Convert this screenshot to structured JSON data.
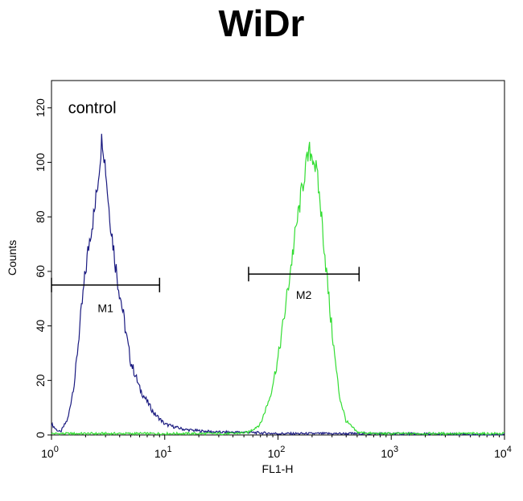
{
  "chart_data": {
    "type": "line",
    "title": "WiDr",
    "xlabel": "FL1-H",
    "ylabel": "Counts",
    "x_scale": "log",
    "xlim": [
      1,
      10000
    ],
    "ylim": [
      0,
      130
    ],
    "grid": false,
    "x_ticks": [
      {
        "value": 1,
        "base": "10",
        "exp": "0"
      },
      {
        "value": 10,
        "base": "10",
        "exp": "1"
      },
      {
        "value": 100,
        "base": "10",
        "exp": "2"
      },
      {
        "value": 1000,
        "base": "10",
        "exp": "3"
      },
      {
        "value": 10000,
        "base": "10",
        "exp": "4"
      }
    ],
    "y_ticks": [
      0,
      20,
      40,
      60,
      80,
      100,
      120
    ],
    "series": [
      {
        "name": "control",
        "color": "#1a1a80",
        "x": [
          1,
          1.1,
          1.2,
          1.4,
          1.6,
          1.8,
          2.0,
          2.2,
          2.4,
          2.6,
          2.8,
          3.0,
          3.2,
          3.5,
          3.8,
          4.2,
          4.6,
          5.0,
          5.5,
          6.0,
          6.6,
          7.3,
          8.0,
          9.0,
          10,
          12,
          15,
          20,
          30,
          50,
          100,
          300,
          1000,
          10000
        ],
        "y": [
          4,
          2,
          1,
          6,
          20,
          42,
          60,
          74,
          82,
          95,
          110,
          98,
          84,
          70,
          58,
          47,
          36,
          27,
          22,
          17,
          14,
          11,
          8,
          6,
          4,
          3,
          2,
          1.5,
          1,
          1,
          0.5,
          0.5,
          0.5,
          0
        ]
      },
      {
        "name": "",
        "color": "#33dd33",
        "x": [
          1,
          10,
          40,
          55,
          70,
          85,
          100,
          115,
          130,
          145,
          160,
          175,
          190,
          205,
          220,
          240,
          260,
          290,
          320,
          350,
          400,
          500,
          700,
          1000,
          10000
        ],
        "y": [
          0.5,
          0.5,
          0.5,
          1,
          4,
          14,
          28,
          45,
          62,
          76,
          88,
          98,
          104,
          102,
          96,
          82,
          66,
          44,
          27,
          14,
          5,
          1,
          0.5,
          0.5,
          0.5
        ]
      }
    ],
    "annotations": [
      {
        "text": "control",
        "x": 1.4,
        "y": 118
      },
      {
        "text": "M1",
        "from": 1,
        "to": 9,
        "y": 55,
        "label_y": 45
      },
      {
        "text": "M2",
        "from": 55,
        "to": 520,
        "y": 59,
        "label_y": 50
      }
    ]
  }
}
